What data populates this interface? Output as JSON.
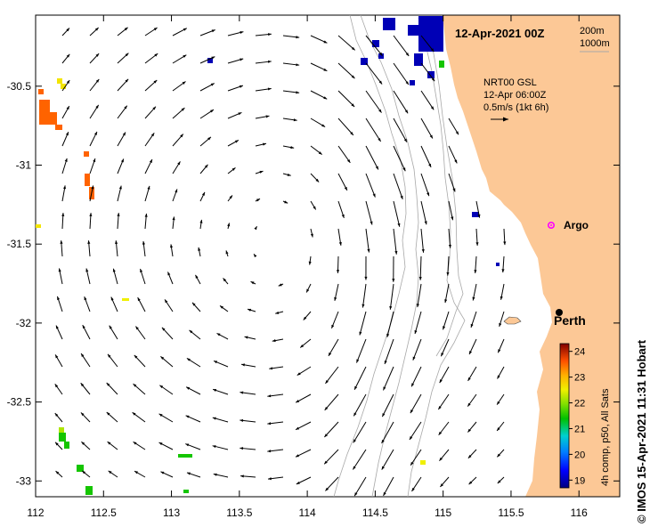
{
  "map": {
    "title": "12-Apr-2021 00Z",
    "bathy_legend": {
      "contour_1": "200m",
      "contour_2": "1000m"
    },
    "current_legend": {
      "source": "NRT00 GSL",
      "time": "12-Apr 06:00Z",
      "scale": "0.5m/s (1kt 6h)"
    },
    "places": {
      "perth": "Perth",
      "argo": "Argo"
    },
    "x_ticks": [
      "112",
      "112.5",
      "113",
      "113.5",
      "114",
      "114.5",
      "115",
      "115.5",
      "116"
    ],
    "y_ticks": [
      "-30.5",
      "-31",
      "-31.5",
      "-32",
      "-32.5",
      "-33"
    ],
    "extent": {
      "lon_min": 112.0,
      "lon_max": 116.3,
      "lat_min": -33.1,
      "lat_max": -30.05
    },
    "colorbar": {
      "ticks": [
        "24",
        "23",
        "22",
        "21",
        "20",
        "19"
      ],
      "label": "4h comp, p50, All Sats",
      "min": 18.7,
      "max": 24.3
    },
    "credit": "IMOS 15-Apr-2021 11:31 Hobart",
    "copyright_symbol": "©",
    "colors": {
      "land": "#fcc896",
      "arrow": "#000000",
      "bathy": "#a8a8a8",
      "argo": "#ff00ff",
      "sst_cold": "#000080",
      "sst_warm": "#800000"
    }
  }
}
